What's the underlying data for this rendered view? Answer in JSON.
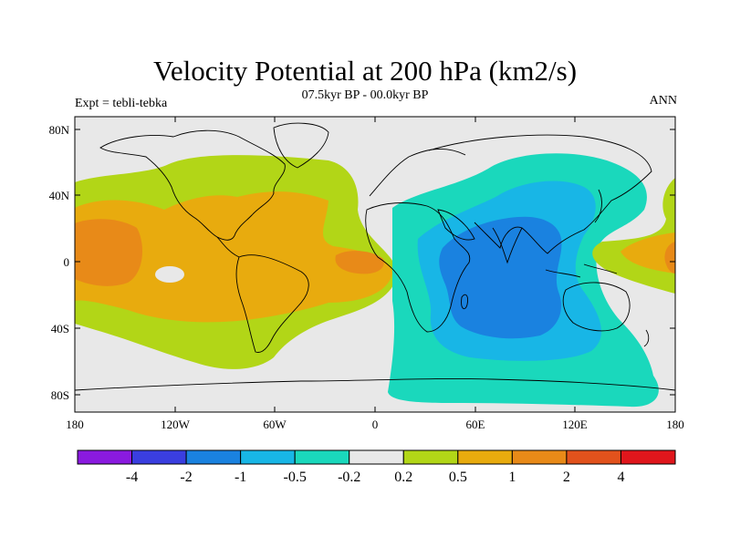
{
  "title": "Velocity Potential at 200 hPa (km2/s)",
  "subtitle_left": "Expt = tebli-tebka",
  "subtitle_center": "07.5kyr BP - 00.0kyr BP",
  "subtitle_right": "ANN",
  "lat_ticks": [
    "80N",
    "40N",
    "0",
    "40S",
    "80S"
  ],
  "lon_ticks": [
    "180",
    "120W",
    "60W",
    "0",
    "60E",
    "120E",
    "180"
  ],
  "colorbar": {
    "colors": [
      "#8a1adf",
      "#3a3ee0",
      "#1a82e0",
      "#18b6e6",
      "#1ad8bc",
      "#e8e8e8",
      "#b2d617",
      "#e8ab0e",
      "#e88a18",
      "#e2521c",
      "#e0161c"
    ],
    "labels": [
      "-4",
      "-2",
      "-1",
      "-0.5",
      "-0.2",
      "0.2",
      "0.5",
      "1",
      "2",
      "4"
    ]
  }
}
